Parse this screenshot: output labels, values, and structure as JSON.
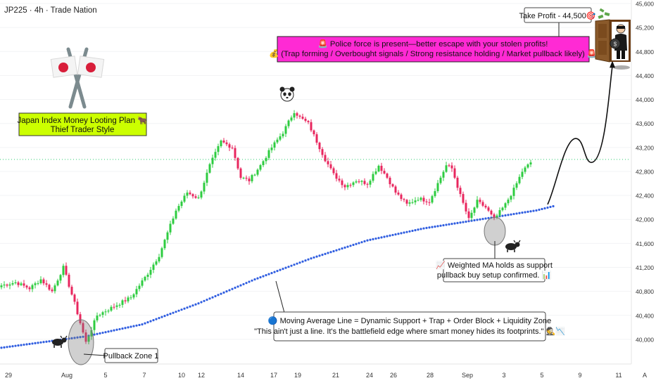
{
  "header": {
    "symbol_line": "JP225 · 4h · Trade Nation"
  },
  "colors": {
    "up": "#2ecc40",
    "down": "#e8265e",
    "ma": "#2f5de0",
    "callout_bg": "#ff2ad4",
    "plan_bg": "#ccff00",
    "last_price_line": "#2ecc71"
  },
  "chart_data": {
    "type": "candlestick",
    "timeframe": "4h",
    "y_axis": {
      "min": 39800,
      "max": 45600,
      "ticks": [
        40000,
        40400,
        40800,
        41200,
        41600,
        42000,
        42400,
        42800,
        43200,
        43600,
        44000,
        44400,
        44800,
        45200,
        45600
      ]
    },
    "x_axis_ticks": [
      "29",
      "Aug",
      "5",
      "7",
      "10",
      "12",
      "14",
      "17",
      "19",
      "21",
      "24",
      "26",
      "28",
      "Sep",
      "3",
      "5",
      "9",
      "11",
      "A"
    ],
    "path_anchors": [
      {
        "t": 0,
        "c": 40900
      },
      {
        "t": 5,
        "c": 40950
      },
      {
        "t": 10,
        "c": 40850
      },
      {
        "t": 14,
        "c": 41000
      },
      {
        "t": 18,
        "c": 40800
      },
      {
        "t": 22,
        "c": 41200
      },
      {
        "t": 26,
        "c": 40600
      },
      {
        "t": 30,
        "c": 39950
      },
      {
        "t": 34,
        "c": 40400
      },
      {
        "t": 40,
        "c": 40550
      },
      {
        "t": 46,
        "c": 40700
      },
      {
        "t": 52,
        "c": 41100
      },
      {
        "t": 56,
        "c": 41400
      },
      {
        "t": 62,
        "c": 42150
      },
      {
        "t": 66,
        "c": 42450
      },
      {
        "t": 70,
        "c": 42350
      },
      {
        "t": 74,
        "c": 42900
      },
      {
        "t": 78,
        "c": 43300
      },
      {
        "t": 82,
        "c": 43200
      },
      {
        "t": 85,
        "c": 42700
      },
      {
        "t": 88,
        "c": 42650
      },
      {
        "t": 92,
        "c": 42900
      },
      {
        "t": 96,
        "c": 43200
      },
      {
        "t": 100,
        "c": 43450
      },
      {
        "t": 104,
        "c": 43800
      },
      {
        "t": 106,
        "c": 43700
      },
      {
        "t": 109,
        "c": 43600
      },
      {
        "t": 112,
        "c": 43300
      },
      {
        "t": 115,
        "c": 43000
      },
      {
        "t": 118,
        "c": 42750
      },
      {
        "t": 122,
        "c": 42550
      },
      {
        "t": 126,
        "c": 42650
      },
      {
        "t": 130,
        "c": 42600
      },
      {
        "t": 134,
        "c": 42900
      },
      {
        "t": 137,
        "c": 42700
      },
      {
        "t": 140,
        "c": 42450
      },
      {
        "t": 144,
        "c": 42250
      },
      {
        "t": 148,
        "c": 42350
      },
      {
        "t": 152,
        "c": 42300
      },
      {
        "t": 155,
        "c": 42600
      },
      {
        "t": 158,
        "c": 42900
      },
      {
        "t": 160,
        "c": 42850
      },
      {
        "t": 163,
        "c": 42400
      },
      {
        "t": 166,
        "c": 42000
      },
      {
        "t": 169,
        "c": 42300
      },
      {
        "t": 172,
        "c": 42200
      },
      {
        "t": 175,
        "c": 42000
      },
      {
        "t": 179,
        "c": 42250
      },
      {
        "t": 182,
        "c": 42500
      },
      {
        "t": 185,
        "c": 42800
      },
      {
        "t": 188,
        "c": 42950
      }
    ],
    "moving_average": [
      {
        "t": 0,
        "v": 39860
      },
      {
        "t": 30,
        "v": 40050
      },
      {
        "t": 50,
        "v": 40250
      },
      {
        "t": 70,
        "v": 40600
      },
      {
        "t": 90,
        "v": 41000
      },
      {
        "t": 110,
        "v": 41350
      },
      {
        "t": 130,
        "v": 41650
      },
      {
        "t": 150,
        "v": 41850
      },
      {
        "t": 170,
        "v": 42000
      },
      {
        "t": 190,
        "v": 42150
      },
      {
        "t": 196,
        "v": 42220
      }
    ],
    "projection": [
      42250,
      43350,
      42950,
      44600
    ],
    "take_profit": 44500,
    "last_price": 43000
  },
  "annotations": {
    "take_profit_label": "Take Profit - 44,500🎯",
    "callout_line1": "🚨 Police force is present—better escape with your stolen profits!",
    "callout_line2": "💰 (Trap forming / Overbought signals / Strong resistance holding / Market pullback likely) 🚨",
    "plan_line1": "Japan Index Money Looting Plan 🐂",
    "plan_line2": "Thief Trader Style",
    "pullback_label": "Pullback Zone 1",
    "ma_support_line1": "📈 Weighted MA holds as support",
    "ma_support_line2": "pullback buy setup confirmed. 📊",
    "ma_note_line1": "🔵 Moving Average Line = Dynamic Support + Trap + Order Block + Liquidity Zone",
    "ma_note_line2": "\"This ain't just a line. It's the battlefield edge where smart money hides its footprints.\" 🕵️📉"
  }
}
